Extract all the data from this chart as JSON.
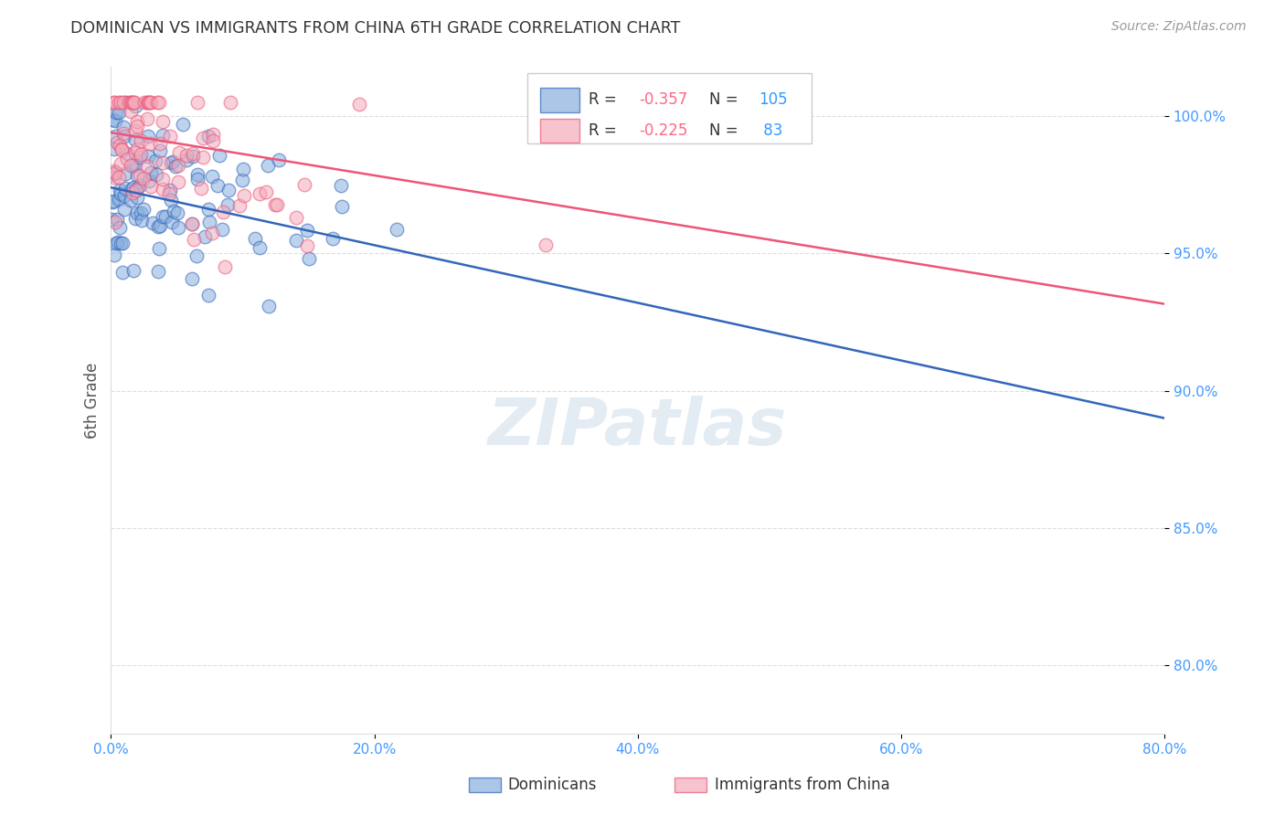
{
  "title": "DOMINICAN VS IMMIGRANTS FROM CHINA 6TH GRADE CORRELATION CHART",
  "source": "Source: ZipAtlas.com",
  "ylabel": "6th Grade",
  "y_ticks": [
    0.8,
    0.85,
    0.9,
    0.95,
    1.0
  ],
  "y_tick_labels": [
    "80.0%",
    "85.0%",
    "90.0%",
    "95.0%",
    "100.0%"
  ],
  "x_ticks": [
    0.0,
    0.2,
    0.4,
    0.6,
    0.8
  ],
  "x_tick_labels": [
    "0.0%",
    "20.0%",
    "40.0%",
    "60.0%",
    "80.0%"
  ],
  "x_range": [
    0.0,
    0.8
  ],
  "y_range": [
    0.775,
    1.018
  ],
  "dominican_R": -0.357,
  "dominican_N": 105,
  "china_R": -0.225,
  "china_N": 83,
  "blue_color": "#88AEDD",
  "pink_color": "#F4AABB",
  "blue_line_color": "#3366BB",
  "pink_line_color": "#EE5577",
  "blue_text_color": "#3399FF",
  "pink_text_color": "#FF6688",
  "watermark_color": "#C8D8E8",
  "grid_color": "#DDDDDD",
  "title_color": "#333333",
  "source_color": "#999999",
  "tick_color": "#4499FF",
  "ylabel_color": "#555555",
  "legend_edge_color": "#CCCCCC",
  "blue_line_y0": 0.974,
  "blue_line_slope": -0.105,
  "pink_line_y0": 0.994,
  "pink_line_slope": -0.078
}
